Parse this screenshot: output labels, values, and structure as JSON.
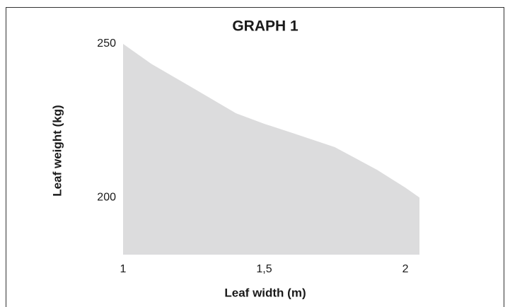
{
  "chart_data": {
    "type": "area",
    "title": "GRAPH 1",
    "x_label": "Leaf width (m)",
    "y_label": "Leaf weight (kg)",
    "x": [
      1,
      1.1,
      1.25,
      1.4,
      1.5,
      1.6,
      1.75,
      1.9,
      2,
      2.05
    ],
    "y": [
      250,
      243.5,
      235.5,
      227.4,
      224,
      221,
      216.4,
      209,
      203.2,
      200
    ],
    "color": "#dcdcdd",
    "xlim": [
      1,
      2.05
    ],
    "ylim": [
      181.4,
      250
    ],
    "xticks": [
      1,
      {
        "value": 1.5,
        "label": "1,5"
      },
      2
    ],
    "yticks": [
      200,
      250
    ],
    "grid": false
  }
}
